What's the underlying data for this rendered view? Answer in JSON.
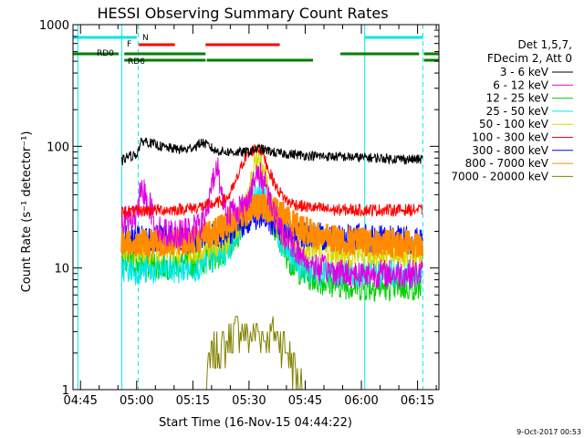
{
  "chart_data": {
    "type": "line",
    "title": "HESSI Observing Summary Count Rates",
    "ylabel": "Count Rate (s⁻¹ detector⁻¹)",
    "xlabel": "Start Time (16-Nov-15 04:44:22)",
    "y_scale": "log",
    "ylim": [
      1,
      1000
    ],
    "y_ticks": [
      {
        "label": "1",
        "value": 1
      },
      {
        "label": "10",
        "value": 10
      },
      {
        "label": "100",
        "value": 100
      },
      {
        "label": "1000",
        "value": 1000
      }
    ],
    "x_ticks": [
      {
        "label": "04:45",
        "value": 0.6
      },
      {
        "label": "05:00",
        "value": 15.6
      },
      {
        "label": "05:15",
        "value": 30.6
      },
      {
        "label": "05:30",
        "value": 45.6
      },
      {
        "label": "05:45",
        "value": 60.6
      },
      {
        "label": "06:00",
        "value": 75.6
      },
      {
        "label": "06:15",
        "value": 90.6
      }
    ],
    "xlim": [
      -1.4,
      96.3
    ],
    "legend_header": [
      "Det 1,5,7,",
      "FDecim 2, Att 0"
    ],
    "legend_position": "right",
    "series": [
      {
        "name": "3 - 6 keV",
        "color": "#000000",
        "x": [
          11.6,
          13,
          14.6,
          15.6,
          16.6,
          17.6,
          20,
          23,
          26,
          29,
          31.5,
          33,
          35,
          36.5,
          38,
          40,
          44,
          47,
          48.5,
          50,
          53,
          57,
          61,
          65,
          70,
          75,
          80,
          85,
          90,
          92
        ],
        "y": [
          75,
          82,
          84,
          86,
          105,
          112,
          104,
          98,
          95,
          94,
          101,
          108,
          100,
          92,
          91,
          90,
          89,
          93,
          96,
          93,
          88,
          86,
          84,
          83,
          82,
          81,
          80,
          79,
          78,
          78
        ]
      },
      {
        "name": "6 - 12 keV",
        "color": "#e000e0",
        "x": [
          11.6,
          13,
          14.6,
          15.6,
          16.4,
          17.6,
          19,
          20.5,
          22,
          26,
          30,
          33,
          35,
          36.2,
          37.2,
          38.5,
          40,
          44,
          46,
          48,
          50,
          52,
          54,
          57,
          60,
          64,
          68,
          72,
          76,
          80,
          85,
          90,
          92
        ],
        "y": [
          24,
          25,
          25,
          26,
          38,
          43,
          33,
          24,
          20,
          19,
          20,
          23,
          34,
          60,
          66,
          38,
          28,
          32,
          42,
          60,
          50,
          30,
          20,
          16,
          12,
          10,
          9.5,
          9,
          9,
          9,
          9,
          9,
          9
        ]
      },
      {
        "name": "12 - 25 keV",
        "color": "#00d000",
        "x": [
          11.6,
          15,
          20,
          25,
          30,
          35,
          40,
          43,
          45,
          47,
          48.5,
          50,
          52,
          54,
          57,
          60,
          64,
          68,
          72,
          76,
          80,
          85,
          90,
          92
        ],
        "y": [
          11,
          11,
          10.5,
          10.5,
          11,
          12,
          14,
          20,
          28,
          35,
          38,
          32,
          22,
          16,
          11,
          9,
          8,
          7.5,
          7.2,
          7,
          7,
          7,
          7,
          7
        ]
      },
      {
        "name": "25 - 50 keV",
        "color": "#00e8e8",
        "x": [
          11.6,
          15,
          20,
          25,
          30,
          35,
          40,
          43,
          45,
          47,
          48.5,
          50,
          52,
          54,
          57,
          60,
          64,
          68,
          72,
          76,
          80,
          85,
          90,
          92
        ],
        "y": [
          10,
          9.5,
          9.5,
          9.5,
          10,
          11,
          14,
          22,
          32,
          42,
          45,
          38,
          25,
          17,
          12,
          10,
          9,
          9,
          9,
          9,
          9,
          9,
          9,
          9
        ]
      },
      {
        "name": "50 - 100 keV",
        "color": "#d8d800",
        "x": [
          11.6,
          15,
          20,
          25,
          30,
          35,
          40,
          43,
          45,
          47,
          48.5,
          50,
          52,
          54,
          57,
          60,
          64,
          68,
          72,
          76,
          80,
          85,
          90,
          92
        ],
        "y": [
          14,
          14,
          14,
          14,
          14,
          15,
          16,
          22,
          33,
          70,
          90,
          60,
          28,
          19,
          16,
          15,
          14,
          13.5,
          13,
          13,
          13,
          13,
          13,
          13
        ]
      },
      {
        "name": "100 - 300 keV",
        "color": "#ff0000",
        "x": [
          11.6,
          15,
          20,
          25,
          30,
          33,
          35,
          38,
          40,
          42,
          44,
          46,
          47.5,
          48.5,
          49.5,
          51,
          53,
          56,
          60,
          64,
          68,
          72,
          76,
          80,
          85,
          90,
          92
        ],
        "y": [
          29,
          29,
          30,
          30,
          31,
          32,
          33,
          35,
          38,
          50,
          75,
          90,
          97,
          95,
          85,
          62,
          45,
          35,
          32,
          31,
          30,
          30,
          30,
          30,
          30,
          30,
          30
        ]
      },
      {
        "name": "300 - 800 keV",
        "color": "#0000ff",
        "x": [
          11.6,
          15,
          20,
          25,
          30,
          35,
          40,
          45,
          48,
          50,
          55,
          60,
          65,
          70,
          75,
          80,
          85,
          90,
          92
        ],
        "y": [
          17,
          17,
          17,
          17,
          17,
          18,
          20,
          24,
          27,
          25,
          21,
          19,
          18,
          18,
          18,
          17,
          17,
          17,
          17
        ]
      },
      {
        "name": "800 - 7000 keV",
        "color": "#ff8c00",
        "x": [
          11.6,
          15,
          20,
          25,
          30,
          35,
          38,
          42,
          46,
          49,
          52,
          55,
          58,
          61,
          65,
          70,
          75,
          80,
          85,
          90,
          92
        ],
        "y": [
          16,
          16,
          16,
          16.5,
          17,
          18.5,
          21,
          26,
          30,
          32,
          30,
          27,
          23,
          20,
          18,
          17,
          16.5,
          16,
          16,
          16,
          16
        ]
      },
      {
        "name": "7000 - 20000 keV",
        "color": "#808000",
        "x": [
          34,
          35,
          36,
          38,
          40,
          42,
          44,
          46,
          48,
          50,
          52,
          54,
          56,
          58,
          60
        ],
        "y": [
          1,
          1.5,
          2,
          2,
          2.5,
          3,
          3,
          2.5,
          3,
          2.5,
          3,
          2.5,
          2,
          1.5,
          1
        ]
      }
    ],
    "state_bars": [
      {
        "label": "N",
        "color": "#00e8e8",
        "segments": [
          [
            -1.4,
            15.6
          ],
          [
            76.5,
            92
          ]
        ]
      },
      {
        "label": "F",
        "color": "#ff0000",
        "segments": [
          [
            16.2,
            25.8
          ],
          [
            34,
            53.8
          ]
        ]
      },
      {
        "label": "RD0",
        "color": "#008000",
        "segments": [
          [
            -1.4,
            10.8
          ],
          [
            12.3,
            34
          ],
          [
            70,
            91
          ],
          [
            92.3,
            96.3
          ]
        ]
      },
      {
        "label": "RD6",
        "color": "#008000",
        "segments": [
          [
            12.3,
            34
          ],
          [
            34.3,
            62.7
          ],
          [
            92.3,
            96.3
          ]
        ]
      }
    ],
    "vertical_lines": [
      {
        "x": -0.1,
        "style": "solid",
        "color": "#00e8e8"
      },
      {
        "x": 11.6,
        "style": "solid",
        "color": "#00e8e8"
      },
      {
        "x": 16.0,
        "style": "dashed",
        "color": "#00e8e8"
      },
      {
        "x": 76.5,
        "style": "solid",
        "color": "#00e8e8"
      },
      {
        "x": 92.0,
        "style": "dashed",
        "color": "#00e8e8"
      }
    ],
    "footer_date": "9-Oct-2017 00:53"
  }
}
